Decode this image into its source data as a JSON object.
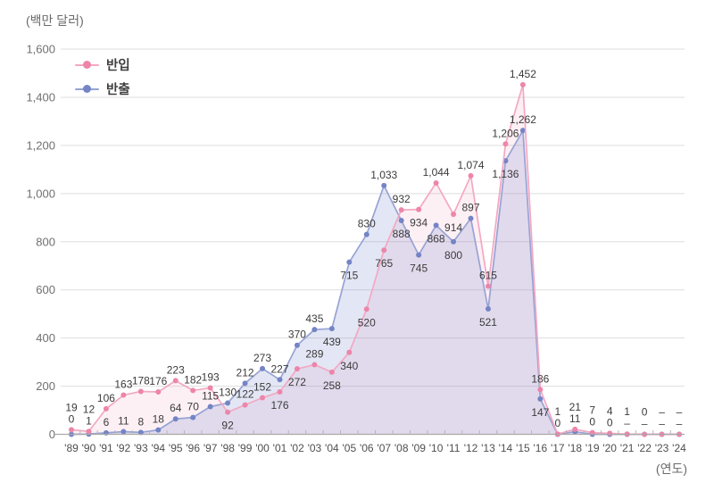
{
  "unit_label": "(백만 달러)",
  "x_axis_label": "(연도)",
  "chart_data": {
    "type": "line",
    "title": "",
    "y_unit": "백만 달러",
    "x_unit": "연도",
    "ylim": [
      0,
      1600
    ],
    "y_ticks": [
      0,
      200,
      400,
      600,
      800,
      1000,
      1200,
      1400,
      1600
    ],
    "grid": true,
    "legend_position": "top-left",
    "categories": [
      "'89",
      "'90",
      "'91",
      "'92",
      "'93",
      "'94",
      "'95",
      "'96",
      "'97",
      "'98",
      "'99",
      "'00",
      "'01",
      "'02",
      "'03",
      "'04",
      "'05",
      "'06",
      "'07",
      "'08",
      "'09",
      "'10",
      "'11",
      "'12",
      "'13",
      "'14",
      "'15",
      "'16",
      "'17",
      "'18",
      "'19",
      "'20",
      "'21",
      "'22",
      "'23",
      "'24"
    ],
    "series": [
      {
        "key": "banip",
        "name": "반입",
        "line_color": "#f3a8c2",
        "dot_color": "#ed85aa",
        "fill_color": "rgba(238,140,175,0.13)",
        "values": [
          19,
          12,
          106,
          163,
          178,
          176,
          223,
          182,
          193,
          92,
          122,
          152,
          176,
          272,
          289,
          258,
          340,
          520,
          765,
          932,
          934,
          1044,
          914,
          1074,
          615,
          1206,
          1452,
          186,
          1,
          21,
          7,
          4,
          1,
          0,
          0,
          0
        ],
        "labels": [
          "19",
          "12",
          "106",
          "163",
          "178",
          "176",
          "223",
          "182",
          "193",
          "92",
          "122",
          "152",
          "176",
          "272",
          "289",
          "258",
          "340",
          "520",
          "765",
          "932",
          "934",
          "1,044",
          "914",
          "1,074",
          "615",
          "1,206",
          "1,452",
          "186",
          "1",
          "21",
          "7",
          "4",
          "1",
          "0",
          "–",
          "–"
        ]
      },
      {
        "key": "banchul",
        "name": "반출",
        "line_color": "#97a3d4",
        "dot_color": "#7484c5",
        "fill_color": "rgba(116,132,198,0.20)",
        "values": [
          0,
          1,
          6,
          11,
          8,
          18,
          64,
          70,
          115,
          130,
          212,
          273,
          227,
          370,
          435,
          439,
          715,
          830,
          1033,
          888,
          745,
          868,
          800,
          897,
          521,
          1136,
          1262,
          147,
          0,
          11,
          0,
          0,
          0,
          0,
          0,
          0
        ],
        "labels": [
          "0",
          "1",
          "6",
          "11",
          "8",
          "18",
          "64",
          "70",
          "115",
          "130",
          "212",
          "273",
          "227",
          "370",
          "435",
          "439",
          "715",
          "830",
          "1,033",
          "888",
          "745",
          "868",
          "800",
          "897",
          "521",
          "1,136",
          "1,262",
          "147",
          "0",
          "11",
          "0",
          "0",
          "–",
          "–",
          "–",
          "–"
        ]
      }
    ]
  }
}
